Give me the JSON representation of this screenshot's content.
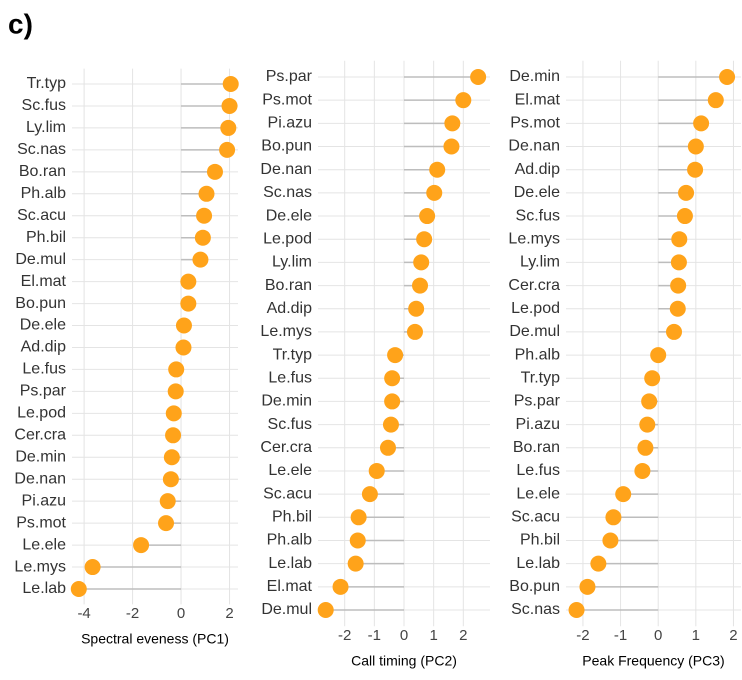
{
  "panel_label": "c)",
  "chart_data": [
    {
      "type": "lollipop",
      "xlabel": "Spectral eveness (PC1)",
      "color": "#ffa31a",
      "grid": true,
      "categories": [
        "Tr.typ",
        "Sc.fus",
        "Ly.lim",
        "Sc.nas",
        "Bo.ran",
        "Ph.alb",
        "Sc.acu",
        "Ph.bil",
        "De.mul",
        "El.mat",
        "Bo.pun",
        "De.ele",
        "Ad.dip",
        "Le.fus",
        "Ps.par",
        "Le.pod",
        "Cer.cra",
        "De.min",
        "De.nan",
        "Pi.azu",
        "Ps.mot",
        "Le.ele",
        "Le.mys",
        "Le.lab"
      ],
      "values": [
        2.05,
        2.0,
        1.95,
        1.9,
        1.4,
        1.05,
        0.95,
        0.9,
        0.8,
        0.3,
        0.3,
        0.12,
        0.1,
        -0.2,
        -0.22,
        -0.3,
        -0.33,
        -0.38,
        -0.42,
        -0.55,
        -0.62,
        -1.65,
        -3.65,
        -4.22
      ],
      "xlim": [
        -4.5,
        2.35
      ],
      "xticks": [
        -4,
        -2,
        0,
        2
      ]
    },
    {
      "type": "lollipop",
      "xlabel": "Call timing (PC2)",
      "color": "#ffa31a",
      "grid": true,
      "categories": [
        "Ps.par",
        "Ps.mot",
        "Pi.azu",
        "Bo.pun",
        "De.nan",
        "Sc.nas",
        "De.ele",
        "Le.pod",
        "Ly.lim",
        "Bo.ran",
        "Ad.dip",
        "Le.mys",
        "Tr.typ",
        "Le.fus",
        "De.min",
        "Sc.fus",
        "Cer.cra",
        "Le.ele",
        "Sc.acu",
        "Ph.bil",
        "Ph.alb",
        "Le.lab",
        "El.mat",
        "De.mul"
      ],
      "values": [
        2.5,
        2.0,
        1.63,
        1.6,
        1.12,
        1.02,
        0.78,
        0.68,
        0.58,
        0.54,
        0.41,
        0.37,
        -0.3,
        -0.4,
        -0.4,
        -0.44,
        -0.54,
        -0.92,
        -1.15,
        -1.53,
        -1.56,
        -1.63,
        -2.14,
        -2.64
      ],
      "xlim": [
        -2.9,
        2.9
      ],
      "xticks": [
        -2,
        -1,
        0,
        1,
        2
      ]
    },
    {
      "type": "lollipop",
      "xlabel": "Peak Frequency (PC3)",
      "color": "#ffa31a",
      "grid": true,
      "categories": [
        "De.min",
        "El.mat",
        "Ps.mot",
        "De.nan",
        "Ad.dip",
        "De.ele",
        "Sc.fus",
        "Le.mys",
        "Ly.lim",
        "Cer.cra",
        "Le.pod",
        "De.mul",
        "Ph.alb",
        "Tr.typ",
        "Ps.par",
        "Pi.azu",
        "Bo.ran",
        "Le.fus",
        "Le.ele",
        "Sc.acu",
        "Ph.bil",
        "Le.lab",
        "Bo.pun",
        "Sc.nas"
      ],
      "values": [
        1.83,
        1.53,
        1.14,
        1.0,
        0.98,
        0.74,
        0.71,
        0.56,
        0.55,
        0.53,
        0.52,
        0.42,
        0.0,
        -0.16,
        -0.24,
        -0.29,
        -0.34,
        -0.42,
        -0.93,
        -1.19,
        -1.27,
        -1.59,
        -1.88,
        -2.17
      ],
      "xlim": [
        -2.45,
        2.2
      ],
      "xticks": [
        -2,
        -1,
        0,
        1,
        2
      ]
    }
  ]
}
